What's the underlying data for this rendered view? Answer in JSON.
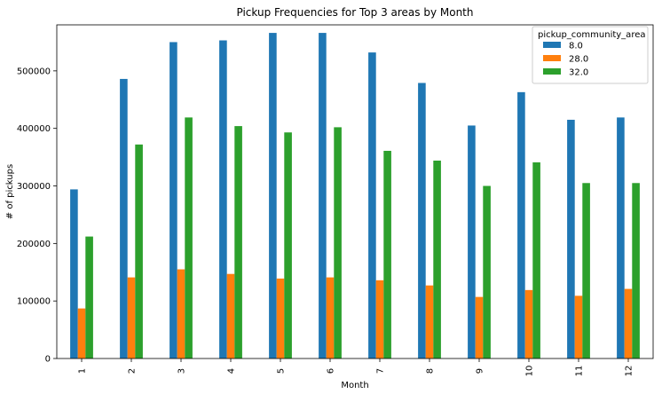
{
  "chart_data": {
    "type": "bar",
    "title": "Pickup Frequencies for Top 3 areas by Month",
    "xlabel": "Month",
    "ylabel": "# of pickups",
    "categories": [
      "1",
      "2",
      "3",
      "4",
      "5",
      "6",
      "7",
      "8",
      "9",
      "10",
      "11",
      "12"
    ],
    "ylim": [
      0,
      580000
    ],
    "yticks": [
      0,
      100000,
      200000,
      300000,
      400000,
      500000
    ],
    "legend_title": "pickup_community_area",
    "legend_position": "top-right",
    "series": [
      {
        "name": "8.0",
        "color": "#1f77b4",
        "values": [
          294000,
          486000,
          550000,
          553000,
          566000,
          566000,
          532000,
          479000,
          405000,
          463000,
          415000,
          419000
        ]
      },
      {
        "name": "28.0",
        "color": "#ff7f0e",
        "values": [
          87000,
          141000,
          155000,
          147000,
          139000,
          141000,
          136000,
          127000,
          107000,
          119000,
          109000,
          121000
        ]
      },
      {
        "name": "32.0",
        "color": "#2ca02c",
        "values": [
          212000,
          372000,
          419000,
          404000,
          393000,
          402000,
          361000,
          344000,
          300000,
          341000,
          305000,
          305000
        ]
      }
    ]
  }
}
